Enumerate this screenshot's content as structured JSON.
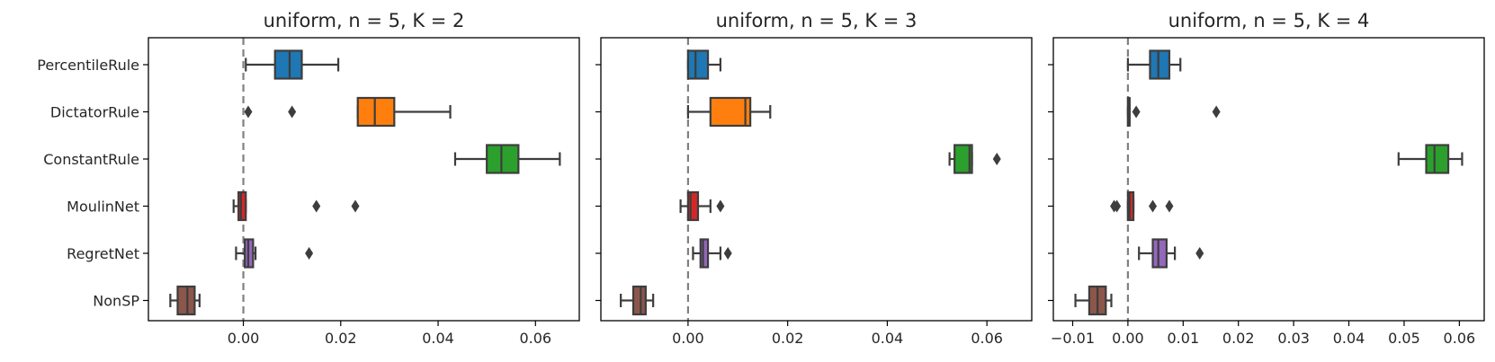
{
  "chart_data": [
    {
      "type": "box",
      "title": "uniform, n = 5, K = 2",
      "xlabel": "",
      "ylabel": "",
      "xlim": [
        -0.0195,
        0.069
      ],
      "xticks": [
        0.0,
        0.02,
        0.04,
        0.06
      ],
      "xtick_labels": [
        "0.00",
        "0.02",
        "0.04",
        "0.06"
      ],
      "reference_line": 0.0,
      "categories": [
        "PercentileRule",
        "DictatorRule",
        "ConstantRule",
        "MoulinNet",
        "RegretNet",
        "NonSP"
      ],
      "boxes": [
        {
          "label": "PercentileRule",
          "whisker_low": 0.0005,
          "q1": 0.0065,
          "median": 0.0095,
          "q3": 0.012,
          "whisker_high": 0.0195,
          "outliers": []
        },
        {
          "label": "DictatorRule",
          "whisker_low": 0.0235,
          "q1": 0.0235,
          "median": 0.027,
          "q3": 0.031,
          "whisker_high": 0.0425,
          "outliers": [
            0.001,
            0.01
          ]
        },
        {
          "label": "ConstantRule",
          "whisker_low": 0.0435,
          "q1": 0.05,
          "median": 0.053,
          "q3": 0.0565,
          "whisker_high": 0.065,
          "outliers": []
        },
        {
          "label": "MoulinNet",
          "whisker_low": -0.002,
          "q1": -0.001,
          "median": -0.0005,
          "q3": 0.0005,
          "whisker_high": 0.0005,
          "outliers": [
            0.015,
            0.023
          ]
        },
        {
          "label": "RegretNet",
          "whisker_low": -0.0015,
          "q1": 0.0003,
          "median": 0.001,
          "q3": 0.002,
          "whisker_high": 0.0025,
          "outliers": [
            0.0135
          ]
        },
        {
          "label": "NonSP",
          "whisker_low": -0.015,
          "q1": -0.0135,
          "median": -0.0115,
          "q3": -0.01,
          "whisker_high": -0.009,
          "outliers": []
        }
      ]
    },
    {
      "type": "box",
      "title": "uniform, n = 5, K = 3",
      "xlabel": "",
      "ylabel": "",
      "xlim": [
        -0.0175,
        0.069
      ],
      "xticks": [
        0.0,
        0.02,
        0.04,
        0.06
      ],
      "xtick_labels": [
        "0.00",
        "0.02",
        "0.04",
        "0.06"
      ],
      "reference_line": 0.0,
      "categories": [
        "PercentileRule",
        "DictatorRule",
        "ConstantRule",
        "MoulinNet",
        "RegretNet",
        "NonSP"
      ],
      "boxes": [
        {
          "label": "PercentileRule",
          "whisker_low": 0.0,
          "q1": 0.0,
          "median": 0.0015,
          "q3": 0.004,
          "whisker_high": 0.0065,
          "outliers": []
        },
        {
          "label": "DictatorRule",
          "whisker_low": 0.0,
          "q1": 0.0045,
          "median": 0.0115,
          "q3": 0.0125,
          "whisker_high": 0.0165,
          "outliers": []
        },
        {
          "label": "ConstantRule",
          "whisker_low": 0.0525,
          "q1": 0.0535,
          "median": 0.0565,
          "q3": 0.057,
          "whisker_high": 0.057,
          "outliers": [
            0.062
          ]
        },
        {
          "label": "MoulinNet",
          "whisker_low": -0.0015,
          "q1": 0.0,
          "median": 0.0005,
          "q3": 0.002,
          "whisker_high": 0.0045,
          "outliers": [
            0.0065
          ]
        },
        {
          "label": "RegretNet",
          "whisker_low": 0.001,
          "q1": 0.0025,
          "median": 0.003,
          "q3": 0.004,
          "whisker_high": 0.0065,
          "outliers": [
            0.008
          ]
        },
        {
          "label": "NonSP",
          "whisker_low": -0.0135,
          "q1": -0.011,
          "median": -0.0095,
          "q3": -0.0085,
          "whisker_high": -0.007,
          "outliers": []
        }
      ]
    },
    {
      "type": "box",
      "title": "uniform, n = 5, K = 4",
      "xlabel": "",
      "ylabel": "",
      "xlim": [
        -0.0135,
        0.0645
      ],
      "xticks": [
        -0.01,
        0.0,
        0.01,
        0.02,
        0.03,
        0.04,
        0.05,
        0.06
      ],
      "xtick_labels": [
        "−0.01",
        "0.00",
        "0.01",
        "0.02",
        "0.03",
        "0.04",
        "0.05",
        "0.06"
      ],
      "reference_line": 0.0,
      "categories": [
        "PercentileRule",
        "DictatorRule",
        "ConstantRule",
        "MoulinNet",
        "RegretNet",
        "NonSP"
      ],
      "boxes": [
        {
          "label": "PercentileRule",
          "whisker_low": 0.0,
          "q1": 0.004,
          "median": 0.0055,
          "q3": 0.0075,
          "whisker_high": 0.0095,
          "outliers": []
        },
        {
          "label": "DictatorRule",
          "whisker_low": 0.0,
          "q1": 0.0,
          "median": 0.0003,
          "q3": 0.0003,
          "whisker_high": 0.0003,
          "outliers": [
            0.0015,
            0.016
          ]
        },
        {
          "label": "ConstantRule",
          "whisker_low": 0.049,
          "q1": 0.054,
          "median": 0.0555,
          "q3": 0.058,
          "whisker_high": 0.0605,
          "outliers": []
        },
        {
          "label": "MoulinNet",
          "whisker_low": 0.0,
          "q1": 0.0,
          "median": 0.0003,
          "q3": 0.001,
          "whisker_high": 0.001,
          "outliers": [
            -0.002,
            -0.0025,
            0.0045,
            0.0075
          ]
        },
        {
          "label": "RegretNet",
          "whisker_low": 0.002,
          "q1": 0.0045,
          "median": 0.0055,
          "q3": 0.007,
          "whisker_high": 0.0085,
          "outliers": [
            0.013
          ]
        },
        {
          "label": "NonSP",
          "whisker_low": -0.0095,
          "q1": -0.007,
          "median": -0.0055,
          "q3": -0.004,
          "whisker_high": -0.003,
          "outliers": []
        }
      ]
    }
  ],
  "colors": {
    "PercentileRule": "#1f77b4",
    "DictatorRule": "#ff7f0e",
    "ConstantRule": "#2ca02c",
    "MoulinNet": "#d62728",
    "RegretNet": "#9467bd",
    "NonSP": "#8c564b",
    "edge": "#3d3d3d",
    "reference_line": "#808080"
  }
}
